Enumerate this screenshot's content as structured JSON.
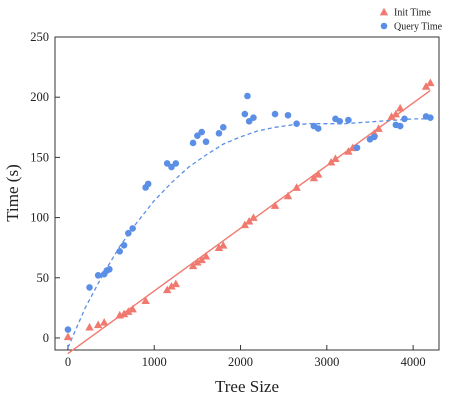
{
  "chart_data": {
    "type": "scatter",
    "xlabel": "Tree Size",
    "ylabel": "Time (s)",
    "xlim": [
      -150,
      4300
    ],
    "ylim": [
      -10,
      250
    ],
    "xticks": [
      0,
      1000,
      2000,
      3000,
      4000
    ],
    "yticks": [
      0,
      50,
      100,
      150,
      200,
      250
    ],
    "grid": false,
    "legend_position": "top-right",
    "series": [
      {
        "name": "Init Time",
        "marker": "triangle",
        "color": "#f07a70",
        "fit": "linear",
        "fit_style": "solid",
        "points": [
          [
            0,
            1
          ],
          [
            250,
            9
          ],
          [
            350,
            11
          ],
          [
            420,
            13
          ],
          [
            600,
            19
          ],
          [
            650,
            20
          ],
          [
            700,
            22
          ],
          [
            750,
            24
          ],
          [
            900,
            31
          ],
          [
            1150,
            40
          ],
          [
            1200,
            43
          ],
          [
            1250,
            45
          ],
          [
            1450,
            60
          ],
          [
            1500,
            63
          ],
          [
            1550,
            65
          ],
          [
            1600,
            68
          ],
          [
            1750,
            75
          ],
          [
            1800,
            77
          ],
          [
            2050,
            94
          ],
          [
            2100,
            97
          ],
          [
            2150,
            100
          ],
          [
            2400,
            110
          ],
          [
            2550,
            118
          ],
          [
            2650,
            125
          ],
          [
            2850,
            133
          ],
          [
            2900,
            136
          ],
          [
            3050,
            146
          ],
          [
            3100,
            149
          ],
          [
            3250,
            155
          ],
          [
            3300,
            158
          ],
          [
            3550,
            170
          ],
          [
            3600,
            174
          ],
          [
            3750,
            184
          ],
          [
            3800,
            186
          ],
          [
            3850,
            191
          ],
          [
            4150,
            209
          ],
          [
            4200,
            212
          ]
        ]
      },
      {
        "name": "Query Time",
        "marker": "circle",
        "color": "#5b8fe6",
        "fit": "smooth",
        "fit_style": "dashed",
        "points": [
          [
            0,
            7
          ],
          [
            250,
            42
          ],
          [
            350,
            52
          ],
          [
            420,
            53
          ],
          [
            450,
            56
          ],
          [
            480,
            57
          ],
          [
            600,
            72
          ],
          [
            650,
            77
          ],
          [
            700,
            87
          ],
          [
            750,
            91
          ],
          [
            900,
            125
          ],
          [
            930,
            128
          ],
          [
            1150,
            145
          ],
          [
            1200,
            142
          ],
          [
            1250,
            145
          ],
          [
            1450,
            162
          ],
          [
            1500,
            168
          ],
          [
            1550,
            171
          ],
          [
            1600,
            163
          ],
          [
            1750,
            170
          ],
          [
            1800,
            175
          ],
          [
            2050,
            186
          ],
          [
            2080,
            201
          ],
          [
            2100,
            180
          ],
          [
            2150,
            183
          ],
          [
            2400,
            186
          ],
          [
            2550,
            185
          ],
          [
            2650,
            178
          ],
          [
            2850,
            176
          ],
          [
            2900,
            174
          ],
          [
            3100,
            182
          ],
          [
            3150,
            180
          ],
          [
            3250,
            181
          ],
          [
            3350,
            158
          ],
          [
            3500,
            165
          ],
          [
            3550,
            167
          ],
          [
            3800,
            177
          ],
          [
            3850,
            176
          ],
          [
            3900,
            182
          ],
          [
            4150,
            184
          ],
          [
            4200,
            183
          ]
        ],
        "curve": [
          [
            0,
            -8
          ],
          [
            200,
            25
          ],
          [
            400,
            52
          ],
          [
            600,
            76
          ],
          [
            800,
            96
          ],
          [
            1000,
            114
          ],
          [
            1200,
            129
          ],
          [
            1400,
            142
          ],
          [
            1600,
            152
          ],
          [
            1800,
            161
          ],
          [
            2000,
            167
          ],
          [
            2200,
            172
          ],
          [
            2400,
            175
          ],
          [
            2600,
            177
          ],
          [
            2800,
            178
          ],
          [
            3000,
            178
          ],
          [
            3200,
            178
          ],
          [
            3400,
            179
          ],
          [
            3600,
            180
          ],
          [
            3800,
            181
          ],
          [
            4000,
            182
          ],
          [
            4200,
            182
          ]
        ]
      }
    ]
  }
}
